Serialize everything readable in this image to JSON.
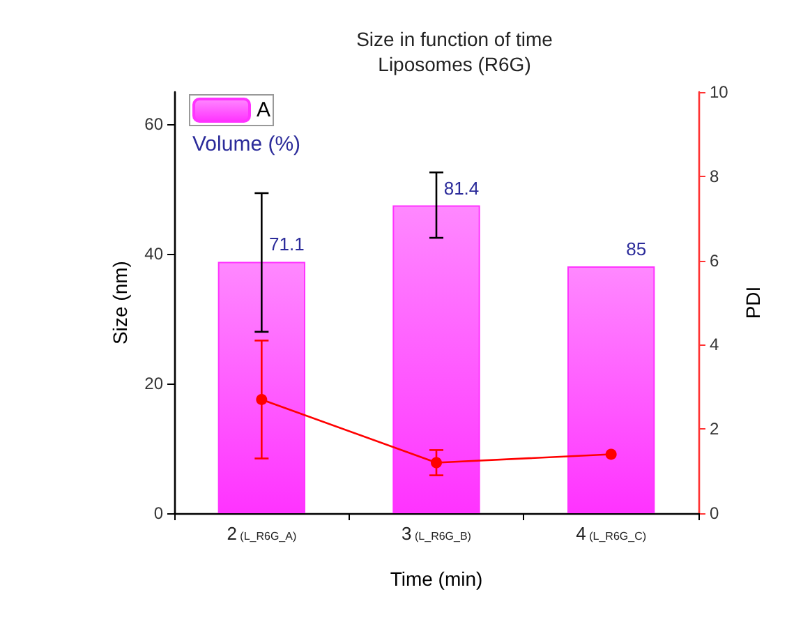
{
  "chart_data": {
    "type": "bar",
    "title": "Size in function of time",
    "subtitle": "Liposomes (R6G)",
    "xlabel": "Time (min)",
    "ylabel": "Size (nm)",
    "y2label": "PDI",
    "categories": [
      "2 (L_R6G_A)",
      "3 (L_R6G_B)",
      "4 (L_R6G_C)"
    ],
    "series": [
      {
        "name": "A",
        "type": "bar",
        "color": "#ff33ff",
        "values": [
          38.8,
          47.5,
          38.1
        ],
        "errors": [
          [
            28.0,
            49.4
          ],
          [
            42.5,
            52.6
          ],
          null
        ]
      },
      {
        "type": "line",
        "axis": "y2",
        "color": "#ff0000",
        "values": [
          2.7,
          1.2,
          1.4
        ],
        "errors": [
          [
            1.3,
            4.1
          ],
          [
            0.9,
            1.5
          ],
          null
        ]
      }
    ],
    "annotations": [
      "Volume (%)",
      {
        "text": "71.1",
        "x": "2 (L_R6G_A)",
        "y": 38.8
      },
      {
        "text": "81.4",
        "x": "3 (L_R6G_B)",
        "y": 47.5
      },
      {
        "text": "85",
        "x": "4 (L_R6G_C)",
        "y": 38.1
      }
    ],
    "ylim": [
      0,
      65
    ],
    "yticks": [
      0,
      20,
      40,
      60
    ],
    "y2lim": [
      0,
      10
    ],
    "y2ticks": [
      0,
      2,
      4,
      6,
      8,
      10
    ],
    "legend": "top left",
    "grid": false,
    "marker": "circle",
    "line_style": "solid"
  }
}
